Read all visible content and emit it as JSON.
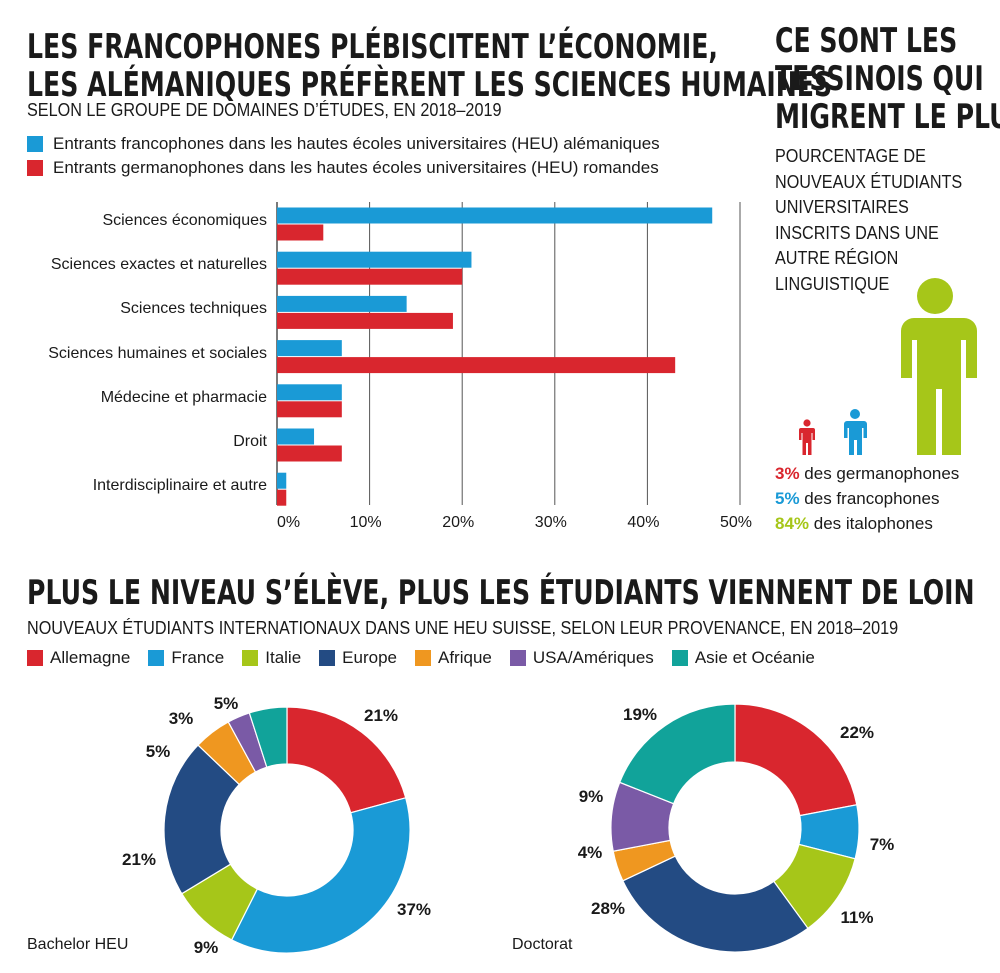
{
  "bar_section": {
    "title_lines": [
      "LES FRANCOPHONES PLÉBISCITENT L’ÉCONOMIE,",
      "LES ALÉMANIQUES PRÉFÈRENT LES SCIENCES HUMAINES"
    ],
    "subtitle": "SELON LE GROUPE DE DOMAINES D’ÉTUDES, EN 2018–2019"
  },
  "side_section": {
    "title_lines": [
      "CE SONT LES",
      "TESSINOIS QUI",
      "MIGRENT LE PLUS"
    ],
    "subtitle_lines": [
      "POURCENTAGE DE",
      "NOUVEAUX ÉTUDIANTS",
      "UNIVERSITAIRES",
      "INSCRITS DANS UNE",
      "AUTRE RÉGION",
      "LINGUISTIQUE"
    ],
    "stats": [
      {
        "value": "3%",
        "label": " des germanophones",
        "color": "#d9262e",
        "fraction": 0.03
      },
      {
        "value": "5%",
        "label": " des francophones",
        "color": "#1a9ad6",
        "fraction": 0.05
      },
      {
        "value": "84%",
        "label": " des italophones",
        "color": "#a6c619",
        "fraction": 0.84
      }
    ]
  },
  "donut_section": {
    "title": "PLUS LE NIVEAU S’ÉLÈVE, PLUS LES ÉTUDIANTS VIENNENT DE LOIN",
    "subtitle": "NOUVEAUX ÉTUDIANTS INTERNATIONAUX DANS UNE HEU SUISSE, SELON LEUR PROVENANCE, EN 2018–2019"
  },
  "chart_data": [
    {
      "type": "bar",
      "orientation": "horizontal",
      "categories": [
        "Sciences économiques",
        "Sciences exactes et naturelles",
        "Sciences techniques",
        "Sciences humaines et sociales",
        "Médecine et pharmacie",
        "Droit",
        "Interdisciplinaire et autre"
      ],
      "series": [
        {
          "name": "Entrants francophones dans les hautes écoles universitaires (HEU) alémaniques",
          "color": "#1a9ad6",
          "values": [
            47,
            21,
            14,
            7,
            7,
            4,
            1
          ]
        },
        {
          "name": "Entrants germanophones dans les hautes écoles universitaires (HEU) romandes",
          "color": "#d9262e",
          "values": [
            5,
            20,
            19,
            43,
            7,
            7,
            1
          ]
        }
      ],
      "xlim": [
        0,
        50
      ],
      "ticks": [
        "0%",
        "10%",
        "20%",
        "30%",
        "40%",
        "50%"
      ],
      "grid": true
    },
    {
      "type": "pie",
      "variant": "donut",
      "name": "Bachelor HEU",
      "categories": [
        "Allemagne",
        "France",
        "Italie",
        "Europe",
        "Afrique",
        "USA/Amériques",
        "Asie et Océanie"
      ],
      "values": [
        21,
        37,
        9,
        21,
        5,
        3,
        5
      ],
      "labels": [
        "21%",
        "37%",
        "9%",
        "21%",
        "5%",
        "3%",
        "5%"
      ]
    },
    {
      "type": "pie",
      "variant": "donut",
      "name": "Doctorat",
      "categories": [
        "Allemagne",
        "France",
        "Italie",
        "Europe",
        "Afrique",
        "USA/Amériques",
        "Asie et Océanie"
      ],
      "values": [
        22,
        7,
        11,
        28,
        4,
        9,
        19
      ],
      "labels": [
        "22%",
        "7%",
        "11%",
        "28%",
        "4%",
        "9%",
        "19%"
      ]
    }
  ],
  "donut_legend": [
    {
      "label": "Allemagne",
      "color": "#d9262e"
    },
    {
      "label": "France",
      "color": "#1a9ad6"
    },
    {
      "label": "Italie",
      "color": "#a6c619"
    },
    {
      "label": "Europe",
      "color": "#234b83"
    },
    {
      "label": "Afrique",
      "color": "#ef9720"
    },
    {
      "label": "USA/Amériques",
      "color": "#7a5aa6"
    },
    {
      "label": "Asie et Océanie",
      "color": "#11a39a"
    }
  ]
}
